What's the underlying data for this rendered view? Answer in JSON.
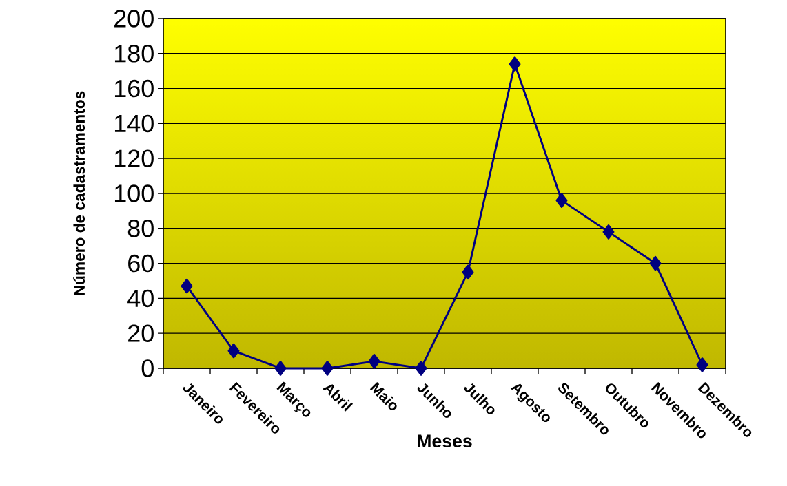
{
  "chart_data": {
    "type": "line",
    "xlabel": "Meses",
    "ylabel": "Número de cadastramentos",
    "categories": [
      "Janeiro",
      "Fevereiro",
      "Março",
      "Abril",
      "Maio",
      "Junho",
      "Julho",
      "Agosto",
      "Setembro",
      "Outubro",
      "Novembro",
      "Dezembro"
    ],
    "series": [
      {
        "color": "#000080",
        "values": [
          47,
          10,
          0,
          0,
          4,
          0,
          55,
          174,
          96,
          78,
          60,
          2
        ]
      }
    ],
    "ylim": [
      0,
      200
    ],
    "yticks": [
      0,
      20,
      40,
      60,
      80,
      100,
      120,
      140,
      160,
      180,
      200
    ],
    "grid": "y",
    "marker": "diamond",
    "line_style": "solid"
  }
}
